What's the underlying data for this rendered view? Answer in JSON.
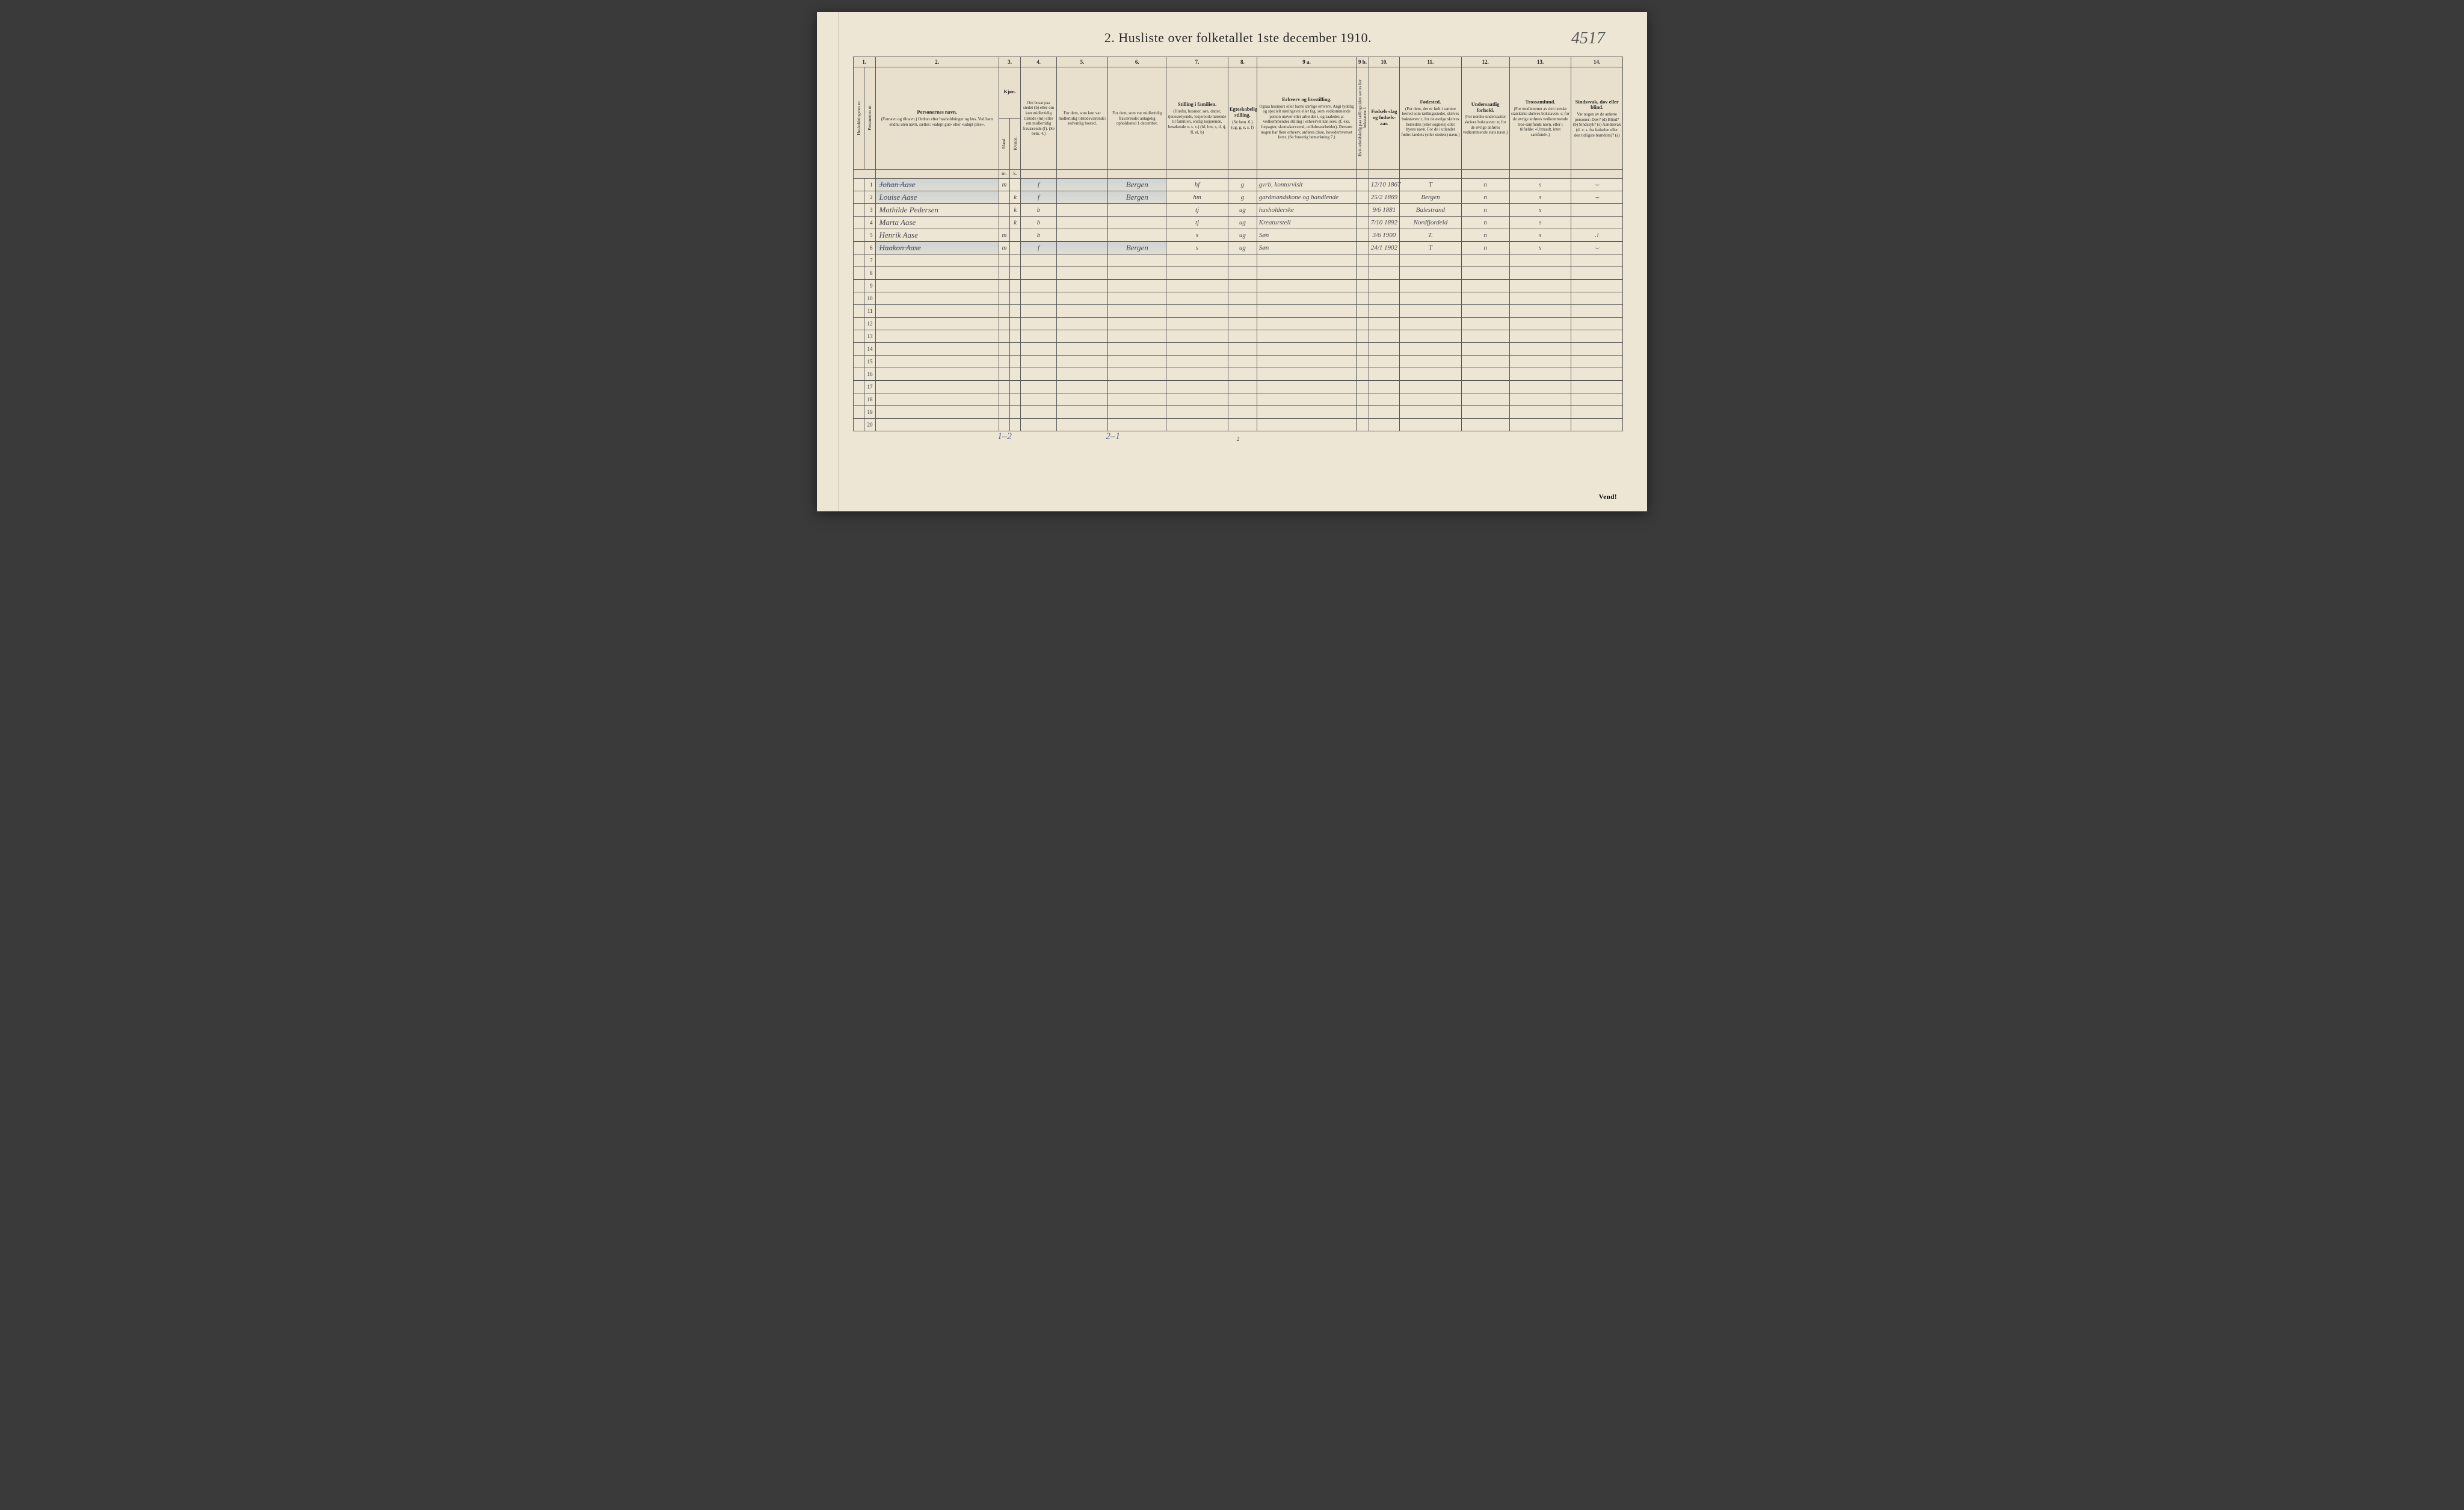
{
  "title": "2.  Husliste over folketallet 1ste december 1910.",
  "hand_corner_number": "4517",
  "page_number_bottom": "2",
  "vend_label": "Vend!",
  "footer_note_1": "1–2",
  "footer_note_2": "2–1",
  "background_color": "#ede6d4",
  "border_color": "#555555",
  "handwriting_color": "#4a4a50",
  "bluewash_color": "rgba(120,160,210,0.25)",
  "col_numbers": [
    "1.",
    "2.",
    "3.",
    "4.",
    "5.",
    "6.",
    "7.",
    "8.",
    "9 a.",
    "9 b.",
    "10.",
    "11.",
    "12.",
    "13.",
    "14."
  ],
  "headers": {
    "h1a": "Husholdningenes nr.",
    "h1b": "Personernes nr.",
    "h2_title": "Personernes navn.",
    "h2_sub": "(Fornavn og tilnavn.)\nOrdnet efter husholdninger og hus.\nVed barn endnu uten navn, sættes: «udøpt gut» eller «udøpt pike».",
    "h3_title": "Kjøn.",
    "h3_m": "Mand.",
    "h3_k": "Kvinde.",
    "h4_title": "",
    "h4_sub": "Om bosat paa stedet (b) eller om kun midlertidig tilstede (mt) eller om midlertidig fraværende (f).  (Se bem. 4.)",
    "h5_title": "",
    "h5_sub": "For dem, som kun var midlertidig tilstedeværende:\n sedvanlig bosted.",
    "h6_title": "",
    "h6_sub": "For dem, som var midlertidig fraværende:\nantagelig opholdssted 1 december.",
    "h7_title": "Stilling i familien.",
    "h7_sub": "(Husfar, husmor, søn, datter, tjenestetyende, losjerende hørende til familien, enslig losjerende, besøkende o. s. v.)\n(hf, hm, s, d, tj, fl, el, b)",
    "h8_title": "Egteskabelig stilling.",
    "h8_sub": "(Se bem. 6.)\n(ug, g, e, s, f)",
    "h9a_title": "Erhverv og livsstilling.",
    "h9a_sub": "Ogsaa husmors eller barns særlige erhverv. Angi tydelig og specielt næringsvei eller fag, som vedkommende person utøver eller arbeider i, og saaledes at vedkommendes stilling i erhvervet kan sees, (f. eks. forpagter, skomakervsend, cellulosearbeider). Dersom nogen har flere erhverv, anføres disse, hovederhvervet først. (Se forøvrig bemerkning 7.)",
    "h9b": "Hvis arbeidsledig paa tællingstiden sættes her bokstaven: l.",
    "h10_title": "Fødsels-dag og fødsels-aar.",
    "h11_title": "Fødested.",
    "h11_sub": "(For dem, der er født i samme herred som tællingsstedet, skrives bokstaven: t; for de øvrige skrives herredets (eller sognets) eller byens navn. For de i utlandet fødte: landets (eller stedets) navn.)",
    "h12_title": "Undersaatlig forhold.",
    "h12_sub": "(For norske undersaatter skrives bokstaven: n; for de øvrige anføres vedkommende stats navn.)",
    "h13_title": "Trossamfund.",
    "h13_sub": "(For medlemmer av den norske statskirke skrives bokstaven: s; for de øvrige anføres vedkommende tros-samfunds navn, eller i tilfælde: «Uttraadt, intet samfund».)",
    "h14_title": "Sindssvak, døv eller blind.",
    "h14_sub": "Var nogen av de anførte personer:\nDøv? (d)\nBlind? (b)\nSindssyk? (s)\nAandssvak (d. v. s. fra fødselen eller den tidligste barndom)? (a)",
    "mk_m": "m.",
    "mk_k": "k."
  },
  "rows": [
    {
      "n": "1",
      "name": "Johan    Aase",
      "m": "m",
      "k": "",
      "res": "f",
      "c5": "",
      "c6": "Bergen",
      "fam": "hf",
      "eg": "g",
      "erh": "gvrb, kontorvisit",
      "dob": "12/10 1867",
      "fs": "T",
      "us": "n",
      "tro": "s",
      "c14": "⌣",
      "wash": true,
      "strike": true
    },
    {
      "n": "2",
      "name": "Louise    Aase",
      "m": "",
      "k": "k",
      "res": "f",
      "c5": "",
      "c6": "Bergen",
      "fam": "hm",
      "eg": "g",
      "erh": "gardmandskone og handlende",
      "dob": "25/2 1869",
      "fs": "Bergen",
      "us": "n",
      "tro": "s",
      "c14": "⌣",
      "wash": true,
      "strike": true
    },
    {
      "n": "3",
      "name": "Mathilde  Pedersen",
      "m": "",
      "k": "k",
      "res": "b",
      "c5": "",
      "c6": "",
      "fam": "tj",
      "eg": "ug",
      "erh": "husholderske",
      "dob": "9/6 1881",
      "fs": "Balestrand",
      "us": "n",
      "tro": "s",
      "c14": ""
    },
    {
      "n": "4",
      "name": "Marta    Aase",
      "m": "",
      "k": "k",
      "res": "b",
      "c5": "",
      "c6": "",
      "fam": "tj",
      "eg": "ug",
      "erh": "Kreaturstell",
      "dob": "7/10 1892",
      "fs": "Nordfjordeid",
      "us": "n",
      "tro": "s",
      "c14": ""
    },
    {
      "n": "5",
      "name": "Henrik   Aase",
      "m": "m",
      "k": "",
      "res": "b",
      "c5": "",
      "c6": "",
      "fam": "s",
      "eg": "ug",
      "erh": "Søn",
      "dob": "3/6 1900",
      "fs": "T.",
      "us": "n",
      "tro": "s",
      "c14": ".!"
    },
    {
      "n": "6",
      "name": "Haakon   Aase",
      "m": "m",
      "k": "",
      "res": "f",
      "c5": "",
      "c6": "Bergen",
      "fam": "s",
      "eg": "ug",
      "erh": "Søn",
      "dob": "24/1 1902",
      "fs": "T",
      "us": "n",
      "tro": "s",
      "c14": "⌣",
      "wash": true,
      "strike": true
    }
  ],
  "empty_rows": [
    "7",
    "8",
    "9",
    "10",
    "11",
    "12",
    "13",
    "14",
    "15",
    "16",
    "17",
    "18",
    "19",
    "20"
  ]
}
